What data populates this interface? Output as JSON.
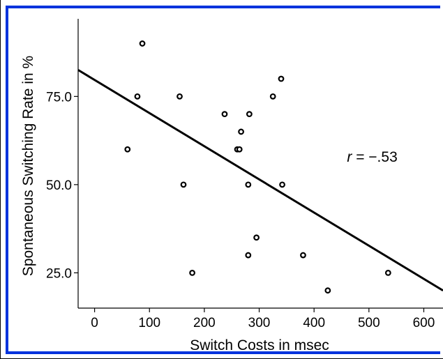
{
  "chart_data": {
    "type": "scatter",
    "xlabel": "Switch Costs in msec",
    "ylabel": "Spontaneous Switching Rate in %",
    "xlim": [
      -30,
      635
    ],
    "ylim": [
      15,
      97
    ],
    "x_ticks": [
      0,
      100,
      200,
      300,
      400,
      500,
      600
    ],
    "x_tick_labels": [
      "0",
      "100",
      "200",
      "300",
      "400",
      "500",
      "600"
    ],
    "y_ticks": [
      25,
      50,
      75
    ],
    "y_tick_labels": [
      "25.0",
      "50.0",
      "75.0"
    ],
    "points": [
      {
        "x": 87,
        "y": 90
      },
      {
        "x": 78,
        "y": 75
      },
      {
        "x": 155,
        "y": 75
      },
      {
        "x": 60,
        "y": 60
      },
      {
        "x": 162,
        "y": 50
      },
      {
        "x": 178,
        "y": 25
      },
      {
        "x": 237,
        "y": 70
      },
      {
        "x": 282,
        "y": 70
      },
      {
        "x": 267,
        "y": 65
      },
      {
        "x": 260,
        "y": 60
      },
      {
        "x": 264,
        "y": 60
      },
      {
        "x": 280,
        "y": 50
      },
      {
        "x": 295,
        "y": 35
      },
      {
        "x": 280,
        "y": 30
      },
      {
        "x": 325,
        "y": 75
      },
      {
        "x": 340,
        "y": 80
      },
      {
        "x": 342,
        "y": 50
      },
      {
        "x": 380,
        "y": 30
      },
      {
        "x": 425,
        "y": 20
      },
      {
        "x": 535,
        "y": 25
      }
    ],
    "regression_line": {
      "x": [
        -30,
        635
      ],
      "y": [
        82.5,
        20
      ]
    },
    "annotation": {
      "prefix": "r",
      "value": " = −.53",
      "x": 460,
      "y": 56.5
    },
    "grid": false,
    "colors": {
      "frame_accent": "#0033dd",
      "ink": "#000000"
    }
  }
}
